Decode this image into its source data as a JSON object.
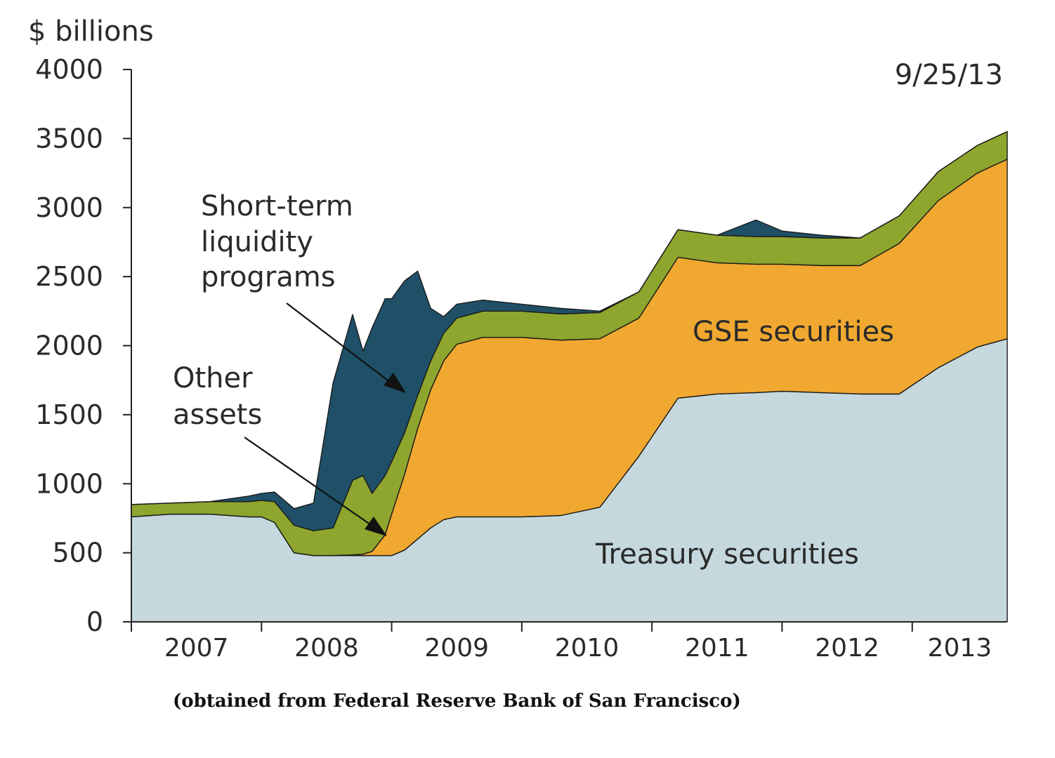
{
  "chart_data": {
    "type": "area",
    "stacked": true,
    "ylabel": "$ billions",
    "ylim": [
      0,
      4000
    ],
    "y_ticks": [
      "0",
      "500",
      "1000",
      "1500",
      "2000",
      "2500",
      "3000",
      "3500",
      "4000"
    ],
    "x_ticks": [
      "2007",
      "2008",
      "2009",
      "2010",
      "2011",
      "2012",
      "2013"
    ],
    "date_annotation": "9/25/13",
    "grid": false,
    "x": [
      2007.0,
      2007.3,
      2007.6,
      2007.9,
      2008.0,
      2008.1,
      2008.25,
      2008.4,
      2008.55,
      2008.7,
      2008.78,
      2008.85,
      2008.95,
      2009.0,
      2009.1,
      2009.2,
      2009.3,
      2009.4,
      2009.5,
      2009.7,
      2010.0,
      2010.3,
      2010.6,
      2010.9,
      2011.2,
      2011.5,
      2011.8,
      2012.0,
      2012.3,
      2012.6,
      2012.9,
      2013.2,
      2013.5,
      2013.73
    ],
    "series": [
      {
        "name": "Treasury securities",
        "color": "#c5d8dd",
        "values": [
          760,
          780,
          780,
          760,
          760,
          720,
          500,
          480,
          480,
          480,
          480,
          480,
          480,
          480,
          520,
          600,
          680,
          740,
          760,
          760,
          760,
          770,
          830,
          1200,
          1620,
          1650,
          1660,
          1670,
          1660,
          1650,
          1650,
          1840,
          1990,
          2050
        ]
      },
      {
        "name": "GSE securities",
        "color": "#f0a830",
        "values": [
          0,
          0,
          0,
          0,
          0,
          0,
          0,
          0,
          0,
          5,
          10,
          30,
          150,
          300,
          550,
          800,
          1000,
          1150,
          1250,
          1300,
          1300,
          1270,
          1220,
          1000,
          1020,
          950,
          930,
          920,
          920,
          930,
          1090,
          1210,
          1260,
          1300
        ]
      },
      {
        "name": "Other assets",
        "color": "#8ea52e",
        "values": [
          90,
          80,
          90,
          110,
          120,
          150,
          200,
          180,
          200,
          540,
          570,
          420,
          430,
          380,
          300,
          240,
          210,
          200,
          190,
          190,
          190,
          190,
          190,
          190,
          200,
          200,
          200,
          200,
          200,
          200,
          200,
          210,
          200,
          200
        ]
      },
      {
        "name": "Short-term liquidity programs",
        "color": "#1f5068",
        "values": [
          0,
          0,
          0,
          40,
          50,
          70,
          120,
          200,
          1050,
          1200,
          900,
          1200,
          1280,
          1180,
          1100,
          900,
          380,
          120,
          100,
          80,
          50,
          40,
          10,
          0,
          0,
          0,
          120,
          40,
          20,
          0,
          0,
          0,
          0,
          0
        ]
      }
    ],
    "annotations": {
      "short_term_label": [
        "Short-term",
        "liquidity",
        "programs"
      ],
      "other_assets_label": [
        "Other",
        "assets"
      ],
      "gse_label": "GSE securities",
      "treasury_label": "Treasury securities"
    }
  },
  "source_note": "(obtained from Federal Reserve Bank of San Francisco)"
}
